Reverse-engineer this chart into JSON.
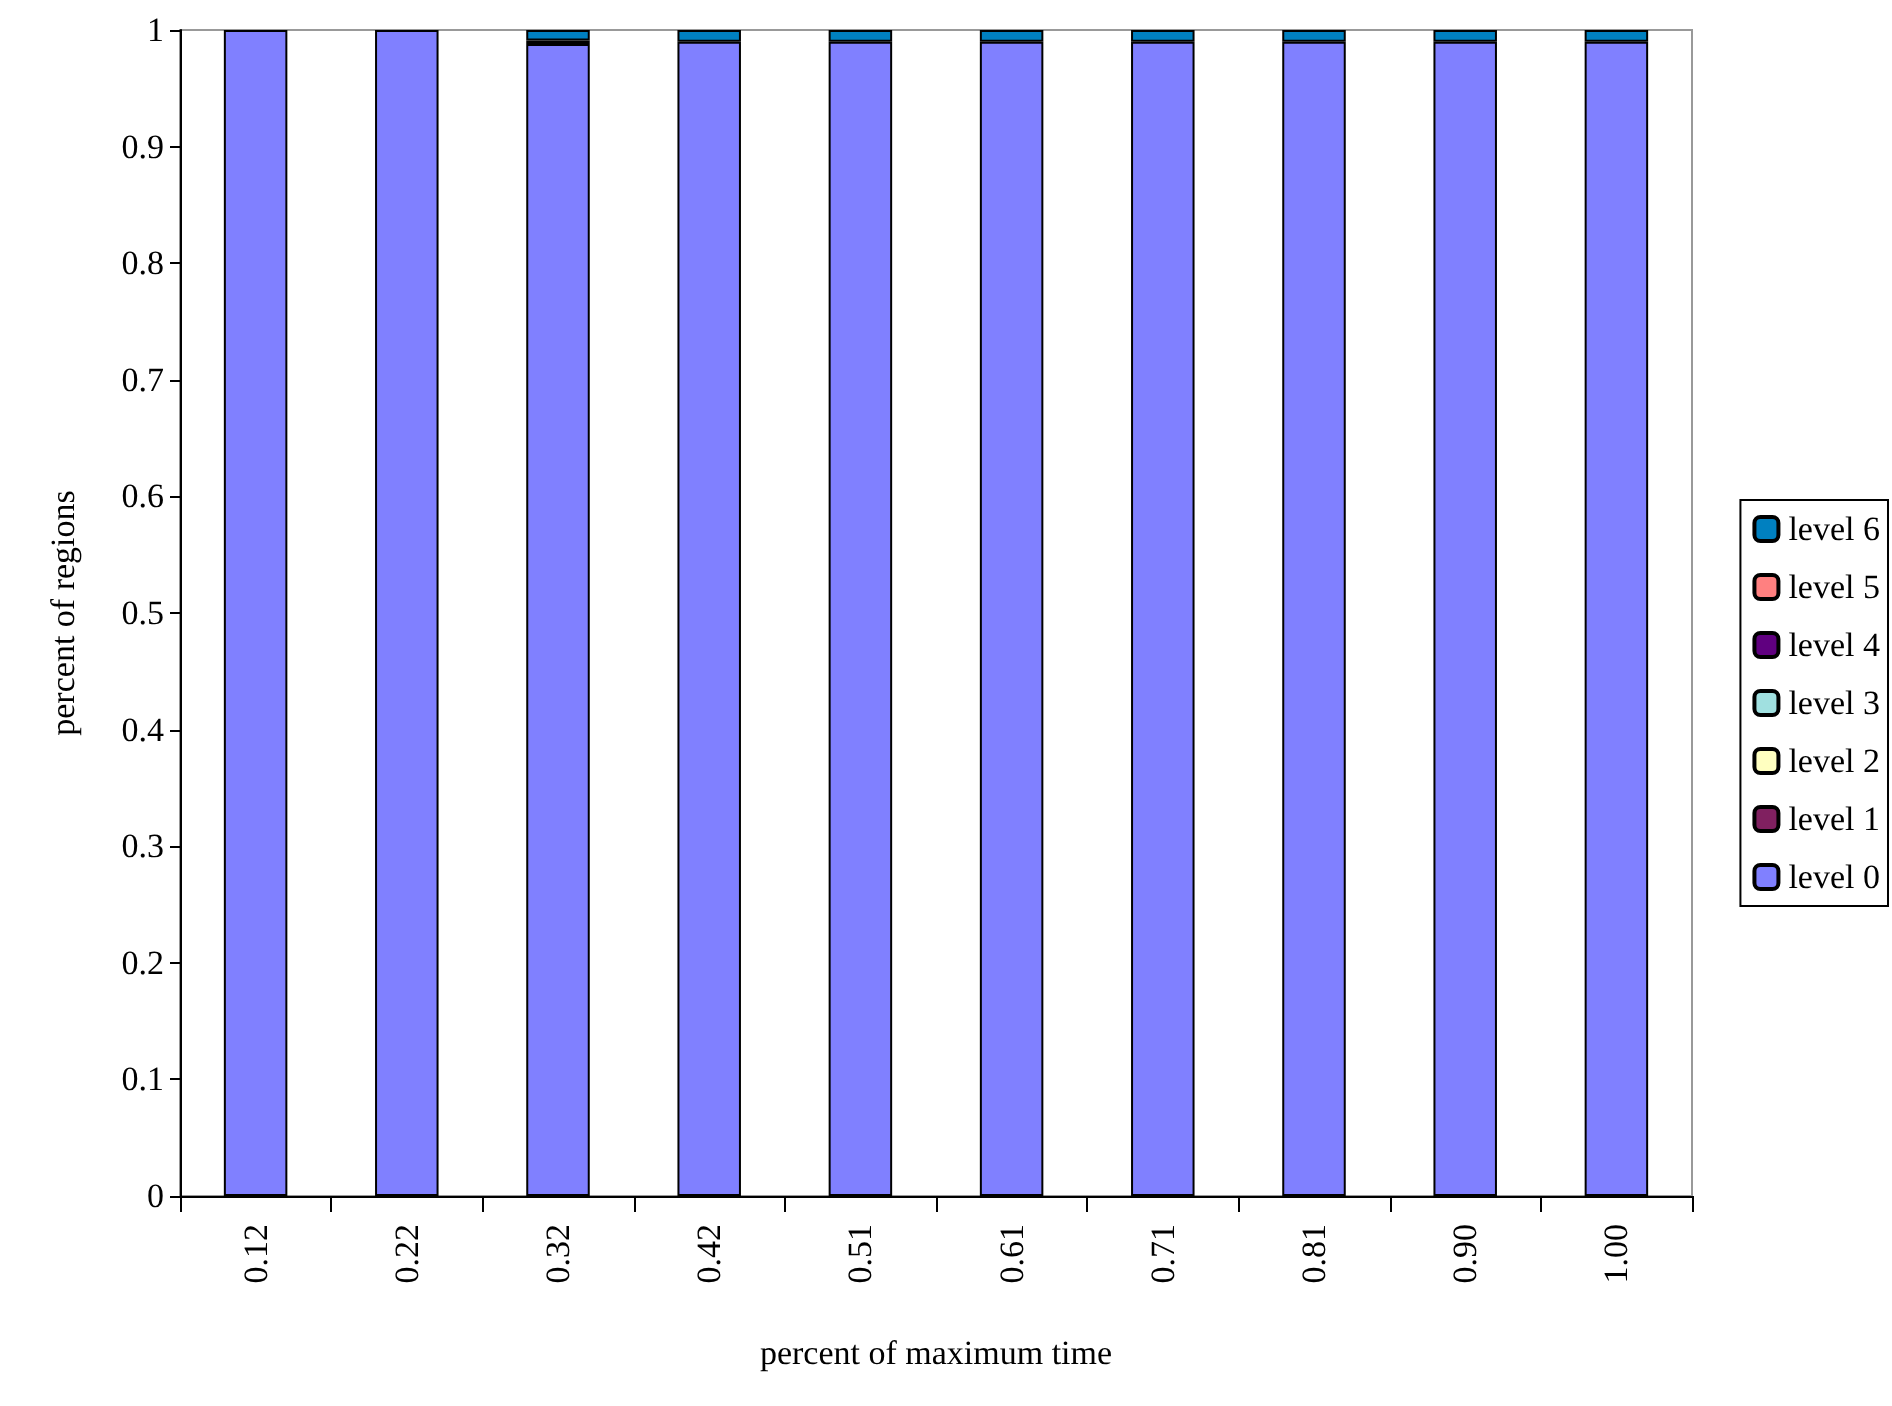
{
  "chart_data": {
    "type": "bar",
    "stacked": true,
    "xlabel": "percent of maximum time",
    "ylabel": "percent of regions",
    "categories": [
      "0.12",
      "0.22",
      "0.32",
      "0.42",
      "0.51",
      "0.61",
      "0.71",
      "0.81",
      "0.90",
      "1.00"
    ],
    "series": [
      {
        "name": "level 0",
        "color": "#8080ff",
        "values": [
          1,
          1,
          0.988,
          0.99,
          0.99,
          0.99,
          0.99,
          0.99,
          0.99,
          0.99
        ]
      },
      {
        "name": "level 1",
        "color": "#802060",
        "values": [
          0,
          0,
          0,
          0,
          0,
          0,
          0,
          0,
          0,
          0
        ]
      },
      {
        "name": "level 2",
        "color": "#ffffc0",
        "values": [
          0,
          0,
          0,
          0,
          0,
          0,
          0,
          0,
          0,
          0
        ]
      },
      {
        "name": "level 3",
        "color": "#a0e0e0",
        "values": [
          0,
          0,
          0,
          0,
          0,
          0,
          0,
          0,
          0,
          0
        ]
      },
      {
        "name": "level 4",
        "color": "#600080",
        "values": [
          0,
          0,
          0.003,
          0,
          0,
          0,
          0,
          0,
          0,
          0
        ]
      },
      {
        "name": "level 5",
        "color": "#ff8080",
        "values": [
          0,
          0,
          0,
          0,
          0,
          0,
          0,
          0,
          0,
          0
        ]
      },
      {
        "name": "level 6",
        "color": "#0080c0",
        "values": [
          0,
          0,
          0.009,
          0.01,
          0.01,
          0.01,
          0.01,
          0.01,
          0.01,
          0.01
        ]
      }
    ],
    "ylim": [
      0,
      1
    ],
    "yticks": [
      0,
      0.1,
      0.2,
      0.3,
      0.4,
      0.5,
      0.6,
      0.7,
      0.8,
      0.9,
      1
    ],
    "grid": false,
    "legend": "right"
  }
}
